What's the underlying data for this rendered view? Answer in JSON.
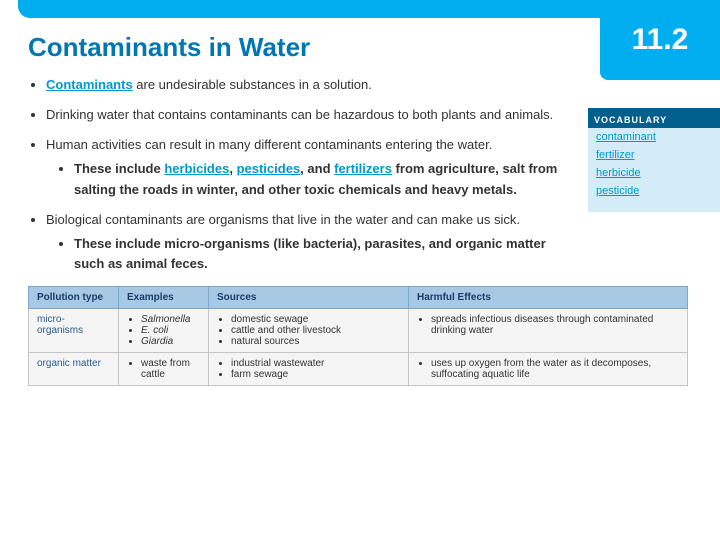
{
  "section_number": "11.2",
  "title": "Contaminants in Water",
  "bullets": {
    "b1_link": "Contaminants",
    "b1_rest": " are undesirable substances in a solution.",
    "b2": "Drinking water that contains contaminants can be hazardous to both plants and animals.",
    "b3": "Human activities can result in many different contaminants entering the water.",
    "b3a_pre": "These include ",
    "b3a_l1": "herbicides",
    "b3a_m1": ", ",
    "b3a_l2": "pesticides",
    "b3a_m2": ", and ",
    "b3a_l3": "fertilizers",
    "b3a_post": " from agriculture, salt from salting the roads in winter, and other toxic chemicals and heavy metals.",
    "b4": "Biological contaminants are organisms that live in the water and can make us sick.",
    "b4a": "These include micro-organisms (like bacteria), parasites, and organic matter such as animal feces."
  },
  "vocab": {
    "header": "VOCABULARY",
    "items": [
      "contaminant",
      "fertilizer",
      "herbicide",
      "pesticide"
    ]
  },
  "table": {
    "headers": [
      "Pollution type",
      "Examples",
      "Sources",
      "Harmful Effects"
    ],
    "rows": [
      {
        "type": "micro-organisms",
        "examples": [
          "Salmonella",
          "E. coli",
          "Giardia"
        ],
        "examples_italic": true,
        "sources": [
          "domestic sewage",
          "cattle and other livestock",
          "natural sources"
        ],
        "effects": [
          "spreads infectious diseases through contaminated drinking water"
        ]
      },
      {
        "type": "organic matter",
        "examples": [
          "waste from cattle"
        ],
        "examples_italic": false,
        "sources": [
          "industrial wastewater",
          "farm sewage"
        ],
        "effects": [
          "uses up oxygen from the water as it decomposes, suffocating aquatic life"
        ]
      }
    ]
  },
  "colors": {
    "accent": "#00aeef",
    "title": "#0077b3",
    "link": "#0099cc",
    "vocab_header_bg": "#005f8c",
    "vocab_bg": "#d4ecf7",
    "th_bg": "#a7c9e3"
  }
}
